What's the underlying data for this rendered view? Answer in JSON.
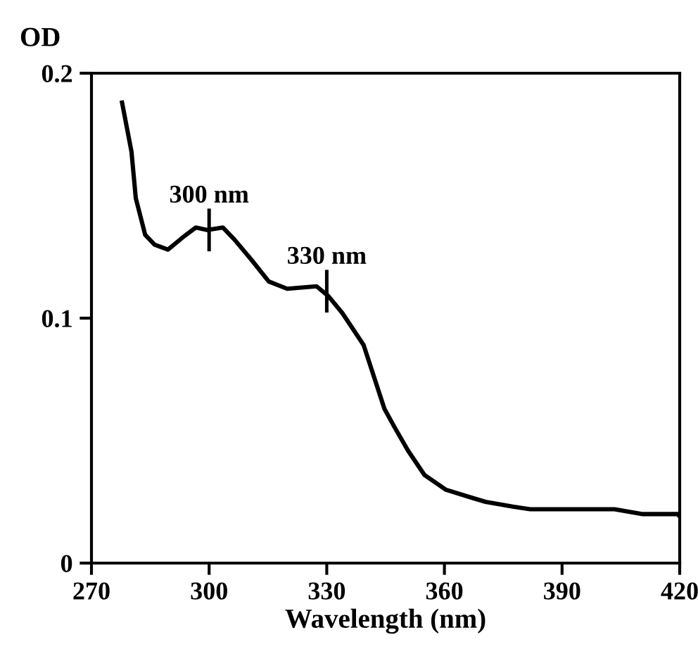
{
  "chart_data": {
    "type": "line",
    "xlabel": "Wavelength (nm)",
    "ylabel": "OD",
    "color": "#000000",
    "x": [
      277.8,
      280.2,
      281.3,
      283.7,
      286.1,
      289.5,
      293.3,
      296.6,
      299.5,
      303.5,
      306.5,
      310.7,
      315.2,
      319.9,
      327.4,
      330.4,
      334,
      339.4,
      344.7,
      347.1,
      350.7,
      354.9,
      360.3,
      366.3,
      370.5,
      377.7,
      381.9,
      403.4,
      410.6,
      419.5,
      420
    ],
    "values": [
      0.188,
      0.168,
      0.149,
      0.134,
      0.13,
      0.128,
      0.133,
      0.137,
      0.136,
      0.137,
      0.132,
      0.124,
      0.115,
      0.112,
      0.113,
      0.109,
      0.102,
      0.089,
      0.063,
      0.056,
      0.046,
      0.036,
      0.03,
      0.027,
      0.025,
      0.023,
      0.022,
      0.022,
      0.02,
      0.02,
      0.019
    ],
    "xlim": [
      270,
      420
    ],
    "ylim": [
      0,
      0.2
    ],
    "xticks": [
      270,
      300,
      330,
      360,
      390,
      420
    ],
    "yticks": [
      0,
      0.1,
      0.2
    ],
    "grid": false,
    "marker": "none",
    "line_style": "solid",
    "annotations": [
      {
        "text": "300 nm",
        "x": 300,
        "y": 0.136
      },
      {
        "text": "330 nm",
        "x": 330,
        "y": 0.111
      }
    ]
  }
}
